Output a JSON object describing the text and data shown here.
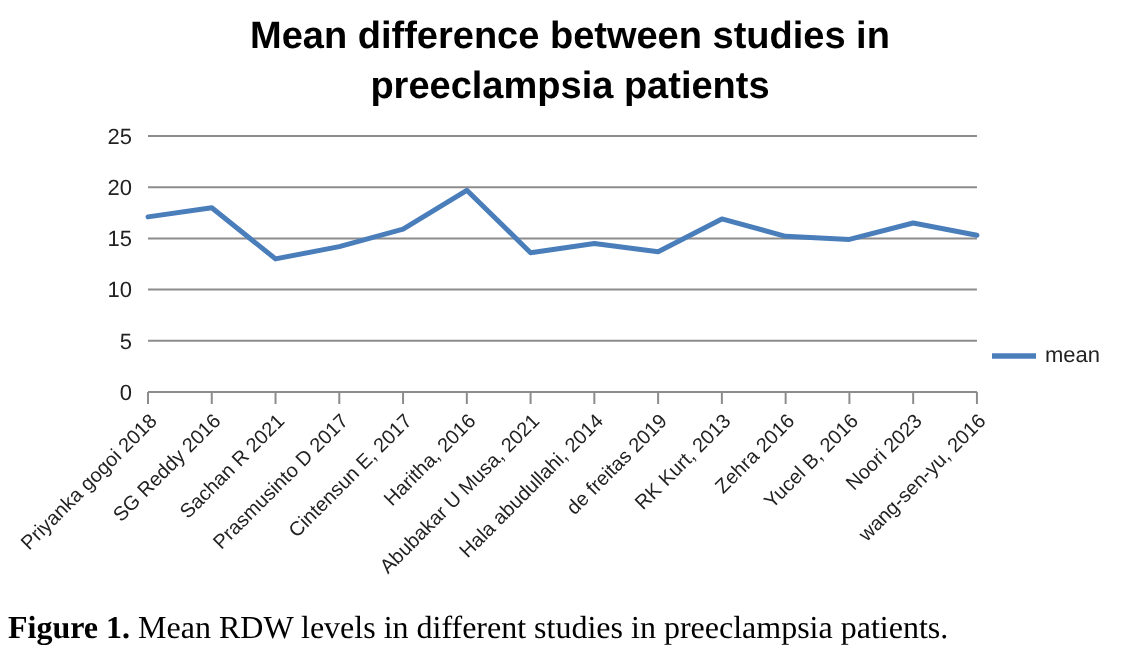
{
  "chart_data": {
    "type": "line",
    "title": "Mean difference between studies in preeclampsia patients",
    "categories": [
      "Priyanka gogoi 2018",
      "SG Reddy 2016",
      "Sachan R 2021",
      "Prasmusinto D 2017",
      "Cintensun E, 2017",
      "Haritha, 2016",
      "Abubakar U Musa, 2021",
      "Hala abudullahi, 2014",
      "de freitas 2019",
      "RK Kurt, 2013",
      "Zehra 2016",
      "Yucel B, 2016",
      "Noori 2023",
      "wang-sen-yu, 2016"
    ],
    "series": [
      {
        "name": "mean",
        "color": "#4a7ebb",
        "values": [
          17.1,
          18.0,
          13.0,
          14.2,
          15.9,
          19.7,
          13.6,
          14.5,
          13.7,
          16.9,
          15.2,
          14.9,
          16.5,
          15.3
        ]
      }
    ],
    "ylim": [
      0,
      25
    ],
    "yticks": [
      0,
      5,
      10,
      15,
      20,
      25
    ],
    "grid": "y",
    "legend": "right",
    "marker": "none",
    "line_style": "solid",
    "annotations": [
      "Figure 1. Mean RDW levels in different studies in preeclampsia patients."
    ]
  }
}
